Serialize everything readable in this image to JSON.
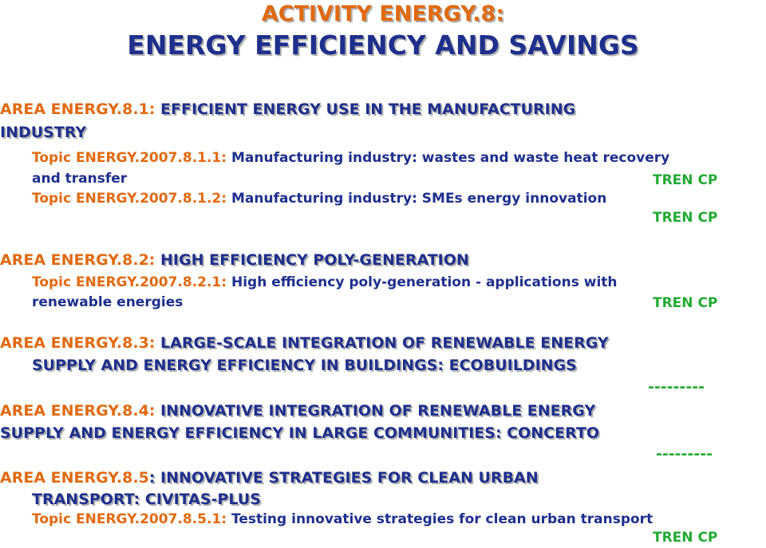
{
  "title": {
    "line1": "ACTIVITY ENERGY.8:",
    "line2": "ENERGY EFFICIENCY AND SAVINGS"
  },
  "area1": {
    "code": "AREA ENERGY.8.1: ",
    "title_a": "EFFICIENT ENERGY USE IN THE MANUFACTURING",
    "title_b": "INDUSTRY",
    "topics": [
      {
        "code": "Topic ENERGY.2007.8.1.1: ",
        "text_a": "Manufacturing industry: wastes and waste heat recovery",
        "text_b": "and transfer",
        "tag": "TREN CP"
      },
      {
        "code": "Topic ENERGY.2007.8.1.2: ",
        "text_a": "Manufacturing industry: SMEs energy innovation",
        "tag": "TREN CP"
      }
    ]
  },
  "area2": {
    "code": "AREA ENERGY.8.2: ",
    "title": "HIGH EFFICIENCY POLY-GENERATION",
    "topics": [
      {
        "code": "Topic ENERGY.2007.8.2.1: ",
        "text_a": "High efficiency poly-generation - applications with",
        "text_b": "renewable energies",
        "tag": "TREN CP"
      }
    ]
  },
  "area3": {
    "code": "AREA ENERGY.8.3: ",
    "title_a": "LARGE-SCALE INTEGRATION OF RENEWABLE ENERGY",
    "title_b": "SUPPLY AND ENERGY EFFICIENCY IN BUILDINGS: ECOBUILDINGS",
    "dashes": "---------"
  },
  "area4": {
    "code": "AREA ENERGY.8.4: ",
    "title_a": "INNOVATIVE INTEGRATION OF RENEWABLE ENERGY",
    "title_b": "SUPPLY AND ENERGY EFFICIENCY IN LARGE COMMUNITIES: CONCERTO",
    "dashes": "---------"
  },
  "area5": {
    "code": "AREA ENERGY.8.5",
    "title_a": ": INNOVATIVE STRATEGIES FOR CLEAN URBAN",
    "title_b": "TRANSPORT: CIVITAS-PLUS",
    "topics": [
      {
        "code": "Topic ENERGY.2007.8.5.1: ",
        "text_a": "Testing innovative strategies for clean urban transport",
        "tag": "TREN CP"
      }
    ]
  }
}
